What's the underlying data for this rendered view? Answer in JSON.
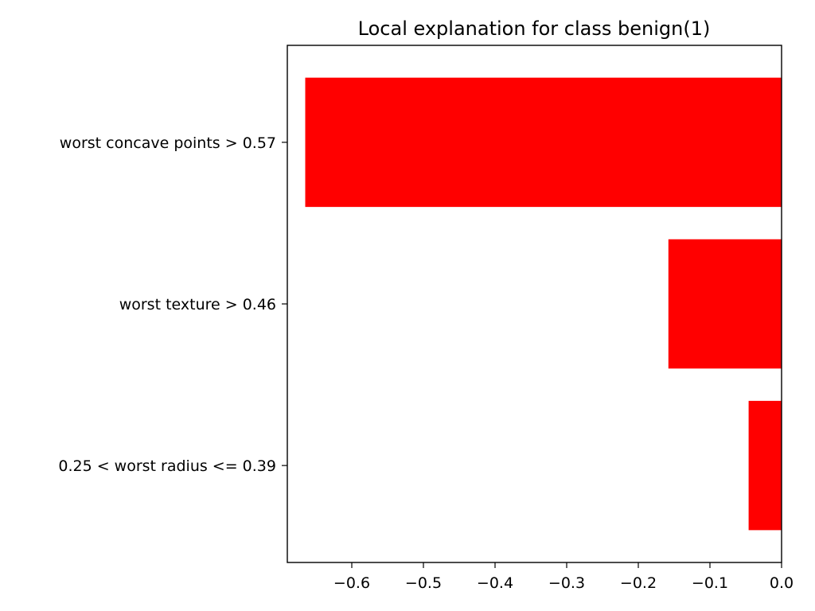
{
  "chart_data": {
    "type": "bar",
    "orientation": "horizontal",
    "title": "Local explanation for class benign(1)",
    "categories": [
      "worst concave points > 0.57",
      "worst texture > 0.46",
      "0.25 < worst radius <= 0.39"
    ],
    "values": [
      -0.665,
      -0.158,
      -0.046
    ],
    "bar_color": "#ff0000",
    "xlim": [
      -0.69,
      0.0
    ],
    "xticks": [
      -0.6,
      -0.5,
      -0.4,
      -0.3,
      -0.2,
      -0.1,
      0.0
    ],
    "xtick_labels": [
      "−0.6",
      "−0.5",
      "−0.4",
      "−0.3",
      "−0.2",
      "−0.1",
      "0.0"
    ],
    "xlabel": "",
    "ylabel": "",
    "grid": false,
    "legend": "none"
  }
}
